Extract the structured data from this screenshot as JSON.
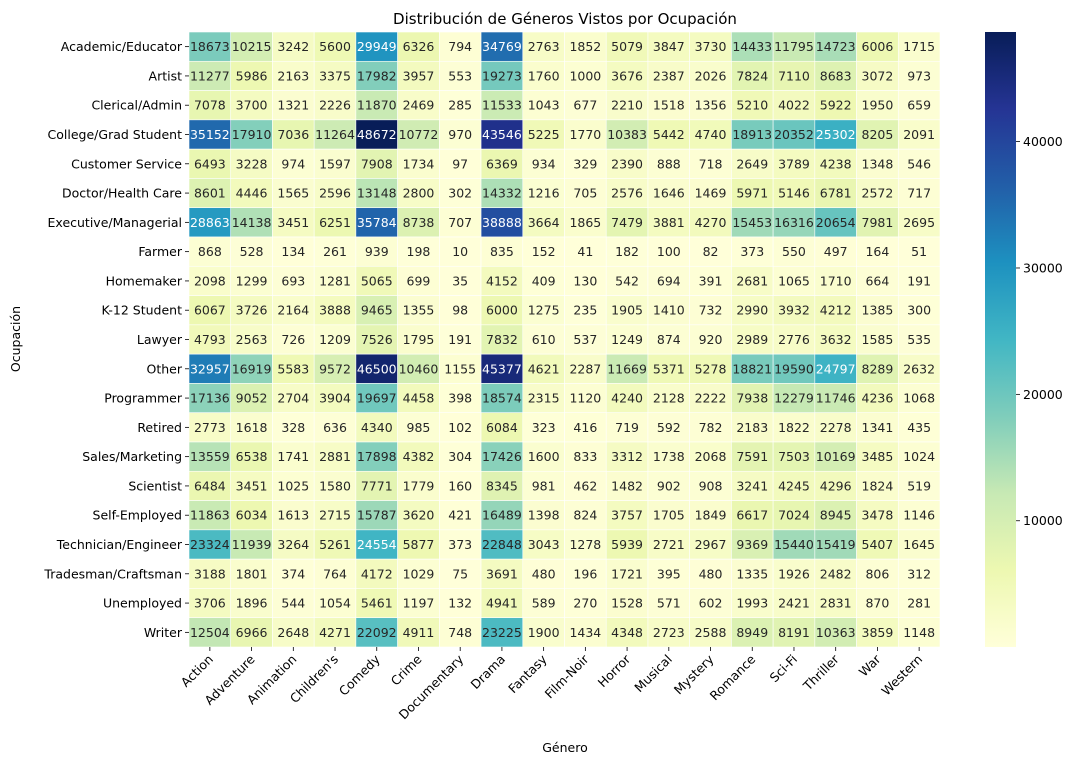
{
  "chart_data": {
    "type": "heatmap",
    "title": "Distribución de Géneros Vistos por Ocupación",
    "xlabel": "Género",
    "ylabel": "Ocupación",
    "colormap": "YlGnBu",
    "vmin": 10,
    "vmax": 48672,
    "colorbar_ticks": [
      10000,
      20000,
      30000,
      40000
    ],
    "columns": [
      "Action",
      "Adventure",
      "Animation",
      "Children's",
      "Comedy",
      "Crime",
      "Documentary",
      "Drama",
      "Fantasy",
      "Film-Noir",
      "Horror",
      "Musical",
      "Mystery",
      "Romance",
      "Sci-Fi",
      "Thriller",
      "War",
      "Western"
    ],
    "rows": [
      "Academic/Educator",
      "Artist",
      "Clerical/Admin",
      "College/Grad Student",
      "Customer Service",
      "Doctor/Health Care",
      "Executive/Managerial",
      "Farmer",
      "Homemaker",
      "K-12 Student",
      "Lawyer",
      "Other",
      "Programmer",
      "Retired",
      "Sales/Marketing",
      "Scientist",
      "Self-Employed",
      "Technician/Engineer",
      "Tradesman/Craftsman",
      "Unemployed",
      "Writer"
    ],
    "values": [
      [
        18673,
        10215,
        3242,
        5600,
        29949,
        6326,
        794,
        34769,
        2763,
        1852,
        5079,
        3847,
        3730,
        14433,
        11795,
        14723,
        6006,
        1715
      ],
      [
        11277,
        5986,
        2163,
        3375,
        17982,
        3957,
        553,
        19273,
        1760,
        1000,
        3676,
        2387,
        2026,
        7824,
        7110,
        8683,
        3072,
        973
      ],
      [
        7078,
        3700,
        1321,
        2226,
        11870,
        2469,
        285,
        11533,
        1043,
        677,
        2210,
        1518,
        1356,
        5210,
        4022,
        5922,
        1950,
        659
      ],
      [
        35152,
        17910,
        7036,
        11264,
        48672,
        10772,
        970,
        43546,
        5225,
        1770,
        10383,
        5442,
        4740,
        18913,
        20352,
        25302,
        8205,
        2091
      ],
      [
        6493,
        3228,
        974,
        1597,
        7908,
        1734,
        97,
        6369,
        934,
        329,
        2390,
        888,
        718,
        2649,
        3789,
        4238,
        1348,
        546
      ],
      [
        8601,
        4446,
        1565,
        2596,
        13148,
        2800,
        302,
        14332,
        1216,
        705,
        2576,
        1646,
        1469,
        5971,
        5146,
        6781,
        2572,
        717
      ],
      [
        28863,
        14138,
        3451,
        6251,
        35784,
        8738,
        707,
        38888,
        3664,
        1865,
        7479,
        3881,
        4270,
        15453,
        16316,
        20654,
        7981,
        2695
      ],
      [
        868,
        528,
        134,
        261,
        939,
        198,
        10,
        835,
        152,
        41,
        182,
        100,
        82,
        373,
        550,
        497,
        164,
        51
      ],
      [
        2098,
        1299,
        693,
        1281,
        5065,
        699,
        35,
        4152,
        409,
        130,
        542,
        694,
        391,
        2681,
        1065,
        1710,
        664,
        191
      ],
      [
        6067,
        3726,
        2164,
        3888,
        9465,
        1355,
        98,
        6000,
        1275,
        235,
        1905,
        1410,
        732,
        2990,
        3932,
        4212,
        1385,
        300
      ],
      [
        4793,
        2563,
        726,
        1209,
        7526,
        1795,
        191,
        7832,
        610,
        537,
        1249,
        874,
        920,
        2989,
        2776,
        3632,
        1585,
        535
      ],
      [
        32957,
        16919,
        5583,
        9572,
        46500,
        10460,
        1155,
        45377,
        4621,
        2287,
        11669,
        5371,
        5278,
        18821,
        19590,
        24797,
        8289,
        2632
      ],
      [
        17136,
        9052,
        2704,
        3904,
        19697,
        4458,
        398,
        18574,
        2315,
        1120,
        4240,
        2128,
        2222,
        7938,
        12279,
        11746,
        4236,
        1068
      ],
      [
        2773,
        1618,
        328,
        636,
        4340,
        985,
        102,
        6084,
        323,
        416,
        719,
        592,
        782,
        2183,
        1822,
        2278,
        1341,
        435
      ],
      [
        13559,
        6538,
        1741,
        2881,
        17898,
        4382,
        304,
        17426,
        1600,
        833,
        3312,
        1738,
        2068,
        7591,
        7503,
        10169,
        3485,
        1024
      ],
      [
        6484,
        3451,
        1025,
        1580,
        7771,
        1779,
        160,
        8345,
        981,
        462,
        1482,
        902,
        908,
        3241,
        4245,
        4296,
        1824,
        519
      ],
      [
        11863,
        6034,
        1613,
        2715,
        15787,
        3620,
        421,
        16489,
        1398,
        824,
        3757,
        1705,
        1849,
        6617,
        7024,
        8945,
        3478,
        1146
      ],
      [
        23324,
        11939,
        3264,
        5261,
        24554,
        5877,
        373,
        22848,
        3043,
        1278,
        5939,
        2721,
        2967,
        9369,
        15440,
        15419,
        5407,
        1645
      ],
      [
        3188,
        1801,
        374,
        764,
        4172,
        1029,
        75,
        3691,
        480,
        196,
        1721,
        395,
        480,
        1335,
        1926,
        2482,
        806,
        312
      ],
      [
        3706,
        1896,
        544,
        1054,
        5461,
        1197,
        132,
        4941,
        589,
        270,
        1528,
        571,
        602,
        1993,
        2421,
        2831,
        870,
        281
      ],
      [
        12504,
        6966,
        2648,
        4271,
        22092,
        4911,
        748,
        23225,
        1900,
        1434,
        4348,
        2723,
        2588,
        8949,
        8191,
        10363,
        3859,
        1148
      ]
    ]
  }
}
